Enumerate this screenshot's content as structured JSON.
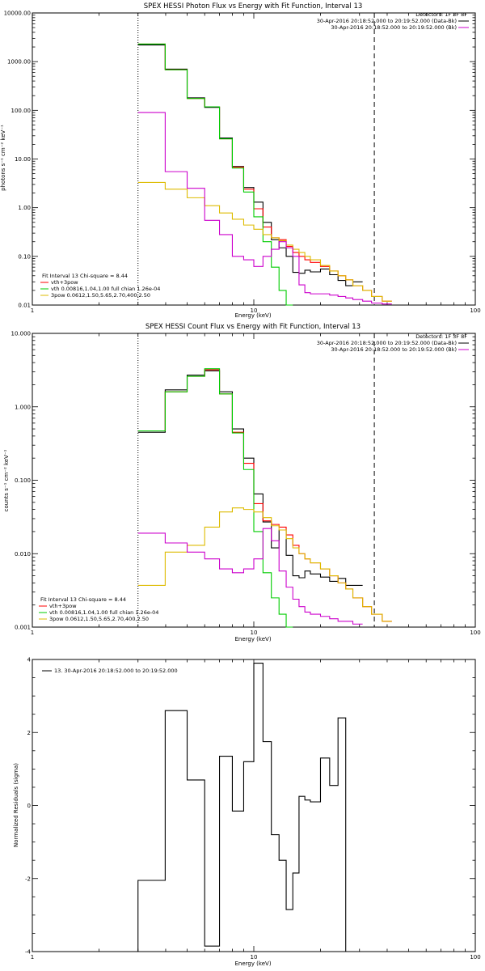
{
  "chart_data": [
    {
      "type": "line",
      "title": "SPEX HESSI Photon Flux vs Energy with Fit Function, Interval 13",
      "xlabel": "Energy (keV)",
      "ylabel": "photons s⁻¹ cm⁻² keV⁻¹",
      "xscale": "log",
      "yscale": "log",
      "xlim": [
        1,
        100
      ],
      "ylim": [
        0.01,
        10000
      ],
      "xticks": [
        "1",
        "10",
        "100"
      ],
      "yticks": [
        "0.01",
        "0.10",
        "1.00",
        "10.00",
        "100.00",
        "1000.00",
        "10000.00"
      ],
      "vlines": [
        {
          "x": 3,
          "style": "dotted"
        },
        {
          "x": 35,
          "style": "dashed"
        }
      ],
      "legend_top": {
        "header": "Detectors: 1F 3F 8F",
        "entries": [
          {
            "label": "30-Apr-2016 20:18:52.000 to 20:19:52.000 (Data-Bk)",
            "color": "#000000"
          },
          {
            "label": "30-Apr-2016 20:18:52.000 to 20:19:52.000 (Bk)",
            "color": "#cc00cc"
          }
        ]
      },
      "legend_bottom": {
        "header": "Fit Interval 13   Chi-square = 8.44",
        "entries": [
          {
            "label": "vth+3pow",
            "color": "#ff0000"
          },
          {
            "label": "vth 0.00816,1.04,1.00  full chian 1.26e-04",
            "color": "#00cc00"
          },
          {
            "label": "3pow 0.0612,1.50,5.65,2.70,400,2.50",
            "color": "#ddbb00"
          }
        ]
      },
      "edges": [
        3.0,
        3.98,
        5.0,
        6.0,
        7.0,
        8.0,
        9.0,
        10.0,
        11.0,
        12.0,
        13.0,
        14.0,
        15.0,
        16.0,
        17.0,
        18.0,
        20.0,
        22.0,
        24.0,
        26.0,
        28.0,
        31.0,
        34.0,
        38.0,
        42.0
      ],
      "series": [
        {
          "name": "Data-Bk",
          "color": "#000000",
          "values": [
            2200,
            700,
            180,
            115,
            27,
            7,
            2.6,
            1.3,
            0.5,
            0.22,
            0.15,
            0.1,
            0.047,
            0.045,
            0.052,
            0.048,
            0.055,
            0.042,
            0.032,
            0.025,
            0.03
          ]
        },
        {
          "name": "vth+3pow",
          "color": "#ff0000",
          "values": [
            2300,
            680,
            175,
            118,
            26,
            6.8,
            2.4,
            0.95,
            0.4,
            0.24,
            0.22,
            0.16,
            0.12,
            0.1,
            0.085,
            0.075,
            0.062,
            0.05,
            0.04,
            0.033,
            0.025,
            0.02,
            0.015,
            0.012
          ]
        },
        {
          "name": "vth",
          "color": "#00cc00",
          "values": [
            2300,
            680,
            175,
            118,
            26,
            6.5,
            2.1,
            0.65,
            0.2,
            0.06,
            0.02,
            0.01
          ]
        },
        {
          "name": "3pow",
          "color": "#ddbb00",
          "values": [
            3.3,
            2.4,
            1.6,
            1.1,
            0.78,
            0.58,
            0.44,
            0.36,
            0.28,
            0.24,
            0.21,
            0.17,
            0.14,
            0.12,
            0.1,
            0.085,
            0.065,
            0.05,
            0.04,
            0.033,
            0.025,
            0.02,
            0.015,
            0.012
          ]
        },
        {
          "name": "Bk",
          "color": "#cc00cc",
          "values": [
            90,
            5.5,
            2.5,
            0.55,
            0.28,
            0.1,
            0.085,
            0.062,
            0.1,
            0.14,
            0.2,
            0.15,
            0.1,
            0.026,
            0.018,
            0.017,
            0.017,
            0.016,
            0.015,
            0.014,
            0.013,
            0.012,
            0.011,
            0.0105
          ]
        }
      ]
    },
    {
      "type": "line",
      "title": "SPEX HESSI Count Flux vs Energy with Fit Function, Interval 13",
      "xlabel": "Energy (keV)",
      "ylabel": "counts s⁻¹ cm⁻² keV⁻¹",
      "xscale": "log",
      "yscale": "log",
      "xlim": [
        1,
        100
      ],
      "ylim": [
        0.001,
        10
      ],
      "xticks": [
        "1",
        "10",
        "100"
      ],
      "yticks": [
        "0.001",
        "0.010",
        "0.100",
        "1.000",
        "10.000"
      ],
      "vlines": [
        {
          "x": 3,
          "style": "dotted"
        },
        {
          "x": 35,
          "style": "dashed"
        }
      ],
      "legend_top": {
        "header": "Detectors: 1F 3F 8F",
        "entries": [
          {
            "label": "30-Apr-2016 20:18:52.000 to 20:19:52.000 (Data-Bk)",
            "color": "#000000"
          },
          {
            "label": "30-Apr-2016 20:18:52.000 to 20:19:52.000 (Bk)",
            "color": "#cc00cc"
          }
        ]
      },
      "legend_bottom": {
        "header": "Fit Interval 13   Chi-square = 8.44",
        "entries": [
          {
            "label": "vth+3pow",
            "color": "#ff0000"
          },
          {
            "label": "vth 0.00816,1.04,1.00  full chian 1.26e-04",
            "color": "#00cc00"
          },
          {
            "label": "3pow 0.0612,1.50,5.65,2.70,400,2.50",
            "color": "#ddbb00"
          }
        ]
      },
      "edges": [
        3.0,
        3.98,
        5.0,
        6.0,
        7.0,
        8.0,
        9.0,
        10.0,
        11.0,
        12.0,
        13.0,
        14.0,
        15.0,
        16.0,
        17.0,
        18.0,
        20.0,
        22.0,
        24.0,
        26.0,
        28.0,
        31.0,
        34.0,
        38.0,
        42.0
      ],
      "series": [
        {
          "name": "Data-Bk",
          "color": "#000000",
          "values": [
            0.45,
            1.7,
            2.7,
            3.1,
            1.6,
            0.5,
            0.2,
            0.065,
            0.027,
            0.012,
            0.021,
            0.0095,
            0.005,
            0.0047,
            0.0058,
            0.0053,
            0.0048,
            0.0042,
            0.0046,
            0.0037,
            0.0037
          ]
        },
        {
          "name": "vth+3pow",
          "color": "#ff0000",
          "values": [
            0.47,
            1.6,
            2.6,
            3.2,
            1.5,
            0.45,
            0.17,
            0.048,
            0.028,
            0.025,
            0.023,
            0.018,
            0.013,
            0.01,
            0.0085,
            0.0075,
            0.0062,
            0.005,
            0.004,
            0.0033,
            0.0025,
            0.0019,
            0.0015,
            0.0012
          ]
        },
        {
          "name": "vth",
          "color": "#00cc00",
          "values": [
            0.47,
            1.6,
            2.6,
            3.3,
            1.5,
            0.44,
            0.14,
            0.02,
            0.0055,
            0.0025,
            0.0015,
            0.001
          ]
        },
        {
          "name": "3pow",
          "color": "#ddbb00",
          "values": [
            0.0037,
            0.0105,
            0.013,
            0.023,
            0.037,
            0.042,
            0.04,
            0.037,
            0.031,
            0.024,
            0.021,
            0.016,
            0.012,
            0.01,
            0.0085,
            0.0075,
            0.0062,
            0.005,
            0.004,
            0.0033,
            0.0025,
            0.0019,
            0.0015,
            0.0012
          ]
        },
        {
          "name": "Bk",
          "color": "#cc00cc",
          "values": [
            0.019,
            0.014,
            0.0105,
            0.0085,
            0.0062,
            0.0055,
            0.0062,
            0.0085,
            0.022,
            0.015,
            0.0058,
            0.0035,
            0.0024,
            0.0019,
            0.0016,
            0.0015,
            0.0014,
            0.0013,
            0.0012,
            0.0012,
            0.0011
          ]
        }
      ]
    },
    {
      "type": "line",
      "title": "",
      "xlabel": "Energy (keV)",
      "ylabel": "Normalized Residuals (sigma)",
      "xscale": "log",
      "yscale": "linear",
      "xlim": [
        1,
        100
      ],
      "ylim": [
        -4,
        4
      ],
      "xticks": [
        "1",
        "10",
        "100"
      ],
      "yticks": [
        "-4",
        "-2",
        "0",
        "2",
        "4"
      ],
      "legend": "13. 30-Apr-2016 20:18:52.000 to 20:19:52.000",
      "edges": [
        3.0,
        3.98,
        5.0,
        6.0,
        7.0,
        8.0,
        9.0,
        10.0,
        11.0,
        12.0,
        13.0,
        14.0,
        15.0,
        16.0,
        17.0,
        18.0,
        20.0,
        22.0,
        24.0,
        26.0,
        28.0,
        31.0,
        34.0
      ],
      "series": [
        {
          "name": "",
          "color": "#000000",
          "values": [
            -2.05,
            2.6,
            0.7,
            -3.85,
            1.35,
            -0.15,
            1.2,
            3.9,
            1.75,
            -0.8,
            -1.5,
            -2.85,
            -1.85,
            0.25,
            0.15,
            0.1,
            1.3,
            0.55,
            2.4
          ]
        }
      ]
    }
  ]
}
